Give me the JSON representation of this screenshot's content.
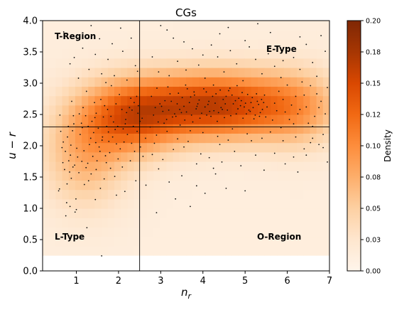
{
  "chart_data": {
    "type": "heatmap",
    "title": "CGs",
    "xlabel": "n_r",
    "ylabel": "u − r",
    "xlim": [
      0.2,
      7.0
    ],
    "ylim": [
      0.0,
      4.0
    ],
    "xticks": [
      1,
      2,
      3,
      4,
      5,
      6,
      7
    ],
    "yticks": [
      0.0,
      0.5,
      1.0,
      1.5,
      2.0,
      2.5,
      3.0,
      3.5,
      4.0
    ],
    "ytick_labels": [
      "0.0",
      "0.5",
      "1.0",
      "1.5",
      "2.0",
      "2.5",
      "3.0",
      "3.5",
      "4.0"
    ],
    "grid": false,
    "colormap": "Oranges",
    "colorbar": {
      "label": "Density",
      "range": [
        0.0,
        0.2
      ],
      "tick_labels": [
        "0.00",
        "0.03",
        "0.05",
        "0.08",
        "0.10",
        "0.12",
        "0.15",
        "0.18",
        "0.20"
      ]
    },
    "divider_lines": {
      "vertical_x": 2.5,
      "horizontal_y": 2.3
    },
    "region_labels": [
      "T-Region",
      "E-Type",
      "L-Type",
      "O-Region"
    ],
    "density_field": {
      "x_range": [
        0.2,
        7.0
      ],
      "y_range": [
        0.25,
        4.0
      ],
      "components": [
        {
          "cx": 4.3,
          "cy": 2.65,
          "sx": 1.3,
          "sy": 0.38,
          "weight": 0.15
        },
        {
          "cx": 2.3,
          "cy": 2.45,
          "sx": 0.8,
          "sy": 0.42,
          "weight": 0.1
        },
        {
          "cx": 1.2,
          "cy": 1.9,
          "sx": 0.7,
          "sy": 0.6,
          "weight": 0.06
        },
        {
          "cx": 6.3,
          "cy": 2.6,
          "sx": 0.7,
          "sy": 0.45,
          "weight": 0.05
        }
      ],
      "baseline": 0.012
    },
    "scatter_points": [
      [
        1.61,
        2.09
      ],
      [
        0.93,
        2.48
      ],
      [
        2.32,
        2.57
      ],
      [
        1.76,
        2.22
      ],
      [
        1.34,
        2.12
      ],
      [
        2.64,
        2.12
      ],
      [
        0.61,
        2.49
      ],
      [
        2.58,
        1.83
      ],
      [
        1.83,
        2.96
      ],
      [
        1.71,
        1.73
      ],
      [
        0.78,
        1.39
      ],
      [
        1.47,
        2.52
      ],
      [
        2.09,
        1.66
      ],
      [
        0.87,
        2.01
      ],
      [
        1.18,
        1.92
      ],
      [
        2.29,
        2.76
      ],
      [
        1.06,
        1.57
      ],
      [
        1.57,
        1.32
      ],
      [
        2.44,
        2.23
      ],
      [
        0.68,
        1.73
      ],
      [
        1.24,
        2.87
      ],
      [
        1.88,
        2.38
      ],
      [
        0.99,
        1.15
      ],
      [
        2.17,
        2.42
      ],
      [
        1.43,
        2.69
      ],
      [
        0.74,
        1.91
      ],
      [
        1.67,
        2.64
      ],
      [
        2.51,
        2.39
      ],
      [
        1.12,
        2.36
      ],
      [
        0.84,
        1.58
      ],
      [
        1.95,
        2.03
      ],
      [
        1.29,
        1.44
      ],
      [
        2.38,
        1.91
      ],
      [
        1.52,
        2.28
      ],
      [
        0.91,
        2.24
      ],
      [
        2.02,
        2.82
      ],
      [
        1.39,
        1.83
      ],
      [
        0.58,
        1.28
      ],
      [
        1.79,
        1.89
      ],
      [
        2.21,
        2.18
      ],
      [
        1.03,
        1.82
      ],
      [
        1.64,
        2.46
      ],
      [
        2.47,
        2.64
      ],
      [
        0.79,
        2.14
      ],
      [
        1.37,
        2.39
      ],
      [
        1.91,
        1.51
      ],
      [
        1.16,
        2.61
      ],
      [
        2.11,
        2.27
      ],
      [
        0.96,
        1.69
      ],
      [
        1.54,
        1.98
      ],
      [
        2.41,
        1.44
      ],
      [
        1.74,
        2.58
      ],
      [
        0.66,
        1.97
      ],
      [
        1.23,
        1.65
      ],
      [
        2.26,
        2.61
      ],
      [
        1.47,
        1.62
      ],
      [
        0.89,
        2.71
      ],
      [
        1.98,
        2.31
      ],
      [
        1.31,
        2.02
      ],
      [
        2.04,
        1.95
      ],
      [
        0.72,
        1.62
      ],
      [
        1.58,
        2.74
      ],
      [
        2.35,
        2.31
      ],
      [
        1.09,
        2.18
      ],
      [
        1.86,
        2.14
      ],
      [
        0.97,
        0.94
      ],
      [
        1.41,
        2.21
      ],
      [
        2.19,
        2.53
      ],
      [
        0.82,
        1.76
      ],
      [
        1.69,
        1.84
      ],
      [
        2.56,
        2.44
      ],
      [
        1.19,
        1.38
      ],
      [
        1.94,
        2.67
      ],
      [
        0.63,
        2.23
      ],
      [
        1.49,
        1.76
      ],
      [
        2.28,
        1.76
      ],
      [
        1.07,
        2.51
      ],
      [
        1.82,
        2.47
      ],
      [
        0.86,
        1.85
      ],
      [
        2.43,
        2.79
      ],
      [
        1.27,
        1.72
      ],
      [
        1.62,
        2.14
      ],
      [
        2.13,
        2.06
      ],
      [
        0.77,
        1.09
      ],
      [
        1.44,
        2.45
      ],
      [
        1.99,
        1.79
      ],
      [
        1.14,
        2.29
      ],
      [
        2.52,
        1.98
      ],
      [
        0.94,
        2.35
      ],
      [
        1.72,
        2.31
      ],
      [
        1.35,
        1.55
      ],
      [
        2.08,
        2.58
      ],
      [
        0.69,
        2.06
      ],
      [
        1.56,
        1.91
      ],
      [
        2.31,
        2.04
      ],
      [
        1.01,
        1.96
      ],
      [
        1.81,
        1.64
      ],
      [
        0.88,
        1.48
      ],
      [
        2.46,
        2.52
      ],
      [
        1.22,
        2.48
      ],
      [
        1.66,
        1.47
      ],
      [
        2.16,
        2.35
      ],
      [
        0.81,
        2.31
      ],
      [
        1.46,
        2.05
      ],
      [
        1.92,
        2.26
      ],
      [
        1.13,
        1.75
      ],
      [
        2.37,
        2.69
      ],
      [
        0.92,
        1.66
      ],
      [
        1.77,
        2.07
      ],
      [
        1.28,
        2.31
      ],
      [
        3.1,
        2.72
      ],
      [
        3.45,
        2.58
      ],
      [
        3.8,
        2.81
      ],
      [
        4.12,
        2.66
      ],
      [
        4.48,
        2.74
      ],
      [
        4.83,
        2.59
      ],
      [
        5.17,
        2.77
      ],
      [
        5.52,
        2.62
      ],
      [
        3.28,
        2.46
      ],
      [
        3.63,
        2.91
      ],
      [
        3.97,
        2.52
      ],
      [
        4.31,
        2.83
      ],
      [
        4.66,
        2.48
      ],
      [
        5.01,
        2.68
      ],
      [
        5.36,
        2.53
      ],
      [
        2.87,
        2.61
      ],
      [
        3.22,
        2.83
      ],
      [
        3.57,
        2.41
      ],
      [
        3.91,
        2.73
      ],
      [
        4.26,
        2.56
      ],
      [
        4.61,
        2.88
      ],
      [
        4.95,
        2.44
      ],
      [
        5.29,
        2.71
      ],
      [
        2.94,
        2.38
      ],
      [
        3.39,
        2.67
      ],
      [
        3.73,
        2.49
      ],
      [
        4.08,
        2.86
      ],
      [
        4.43,
        2.61
      ],
      [
        4.77,
        2.72
      ],
      [
        5.12,
        2.55
      ],
      [
        5.46,
        2.81
      ],
      [
        3.05,
        2.55
      ],
      [
        3.51,
        2.77
      ],
      [
        3.86,
        2.63
      ],
      [
        4.19,
        2.47
      ],
      [
        4.55,
        2.79
      ],
      [
        4.89,
        2.64
      ],
      [
        5.24,
        2.49
      ],
      [
        2.78,
        2.79
      ],
      [
        3.14,
        2.42
      ],
      [
        3.68,
        2.69
      ],
      [
        4.02,
        2.91
      ],
      [
        4.37,
        2.53
      ],
      [
        4.72,
        2.67
      ],
      [
        5.06,
        2.82
      ],
      [
        5.41,
        2.58
      ],
      [
        3.33,
        2.51
      ],
      [
        3.79,
        2.86
      ],
      [
        4.14,
        2.71
      ],
      [
        4.51,
        2.45
      ],
      [
        4.85,
        2.76
      ],
      [
        5.19,
        2.61
      ],
      [
        2.98,
        2.67
      ],
      [
        3.46,
        2.33
      ],
      [
        3.84,
        2.59
      ],
      [
        4.23,
        2.79
      ],
      [
        4.58,
        2.57
      ],
      [
        4.93,
        2.85
      ],
      [
        5.32,
        2.66
      ],
      [
        3.17,
        2.94
      ],
      [
        3.55,
        2.63
      ],
      [
        3.93,
        2.44
      ],
      [
        4.29,
        2.68
      ],
      [
        4.64,
        2.92
      ],
      [
        5.03,
        2.51
      ],
      [
        5.39,
        2.74
      ],
      [
        2.83,
        2.49
      ],
      [
        3.25,
        2.71
      ],
      [
        3.61,
        2.54
      ],
      [
        4.05,
        2.62
      ],
      [
        4.41,
        2.89
      ],
      [
        4.79,
        2.51
      ],
      [
        5.14,
        2.69
      ],
      [
        5.49,
        2.46
      ],
      [
        3.08,
        2.36
      ],
      [
        3.42,
        2.84
      ],
      [
        3.76,
        2.38
      ],
      [
        4.16,
        2.55
      ],
      [
        4.53,
        2.67
      ],
      [
        4.91,
        2.72
      ],
      [
        5.27,
        2.83
      ],
      [
        2.91,
        2.92
      ],
      [
        3.36,
        2.47
      ],
      [
        3.71,
        2.78
      ],
      [
        4.09,
        2.49
      ],
      [
        4.46,
        2.58
      ],
      [
        4.81,
        2.96
      ],
      [
        5.21,
        2.43
      ],
      [
        3.02,
        2.63
      ],
      [
        3.59,
        2.97
      ],
      [
        4.34,
        2.39
      ],
      [
        4.69,
        2.81
      ],
      [
        5.09,
        2.57
      ],
      [
        5.44,
        2.69
      ],
      [
        3.19,
        2.57
      ],
      [
        3.88,
        2.67
      ],
      [
        4.25,
        2.97
      ],
      [
        4.98,
        2.62
      ],
      [
        5.34,
        2.47
      ],
      [
        3.49,
        2.53
      ],
      [
        2.75,
        2.3
      ],
      [
        2.9,
        2.17
      ],
      [
        3.15,
        2.23
      ],
      [
        3.4,
        2.11
      ],
      [
        3.7,
        2.24
      ],
      [
        4.0,
        2.21
      ],
      [
        4.35,
        2.15
      ],
      [
        4.7,
        2.27
      ],
      [
        5.05,
        2.19
      ],
      [
        5.4,
        2.12
      ],
      [
        2.85,
        2.04
      ],
      [
        3.3,
        1.94
      ],
      [
        3.65,
        2.07
      ],
      [
        3.95,
        1.87
      ],
      [
        4.4,
        2.02
      ],
      [
        4.75,
        1.91
      ],
      [
        5.15,
        2.08
      ],
      [
        3.05,
        1.78
      ],
      [
        3.55,
        1.98
      ],
      [
        4.15,
        1.81
      ],
      [
        4.6,
        2.09
      ],
      [
        5.25,
        1.85
      ],
      [
        3.85,
        1.71
      ],
      [
        4.45,
        1.74
      ],
      [
        2.95,
        1.63
      ],
      [
        3.5,
        1.52
      ],
      [
        4.9,
        1.68
      ],
      [
        3.2,
        1.42
      ],
      [
        4.25,
        1.64
      ],
      [
        2.8,
        1.86
      ],
      [
        5.7,
        2.68
      ],
      [
        5.95,
        2.54
      ],
      [
        6.2,
        2.79
      ],
      [
        6.45,
        2.62
      ],
      [
        6.7,
        2.83
      ],
      [
        6.9,
        2.51
      ],
      [
        5.8,
        2.87
      ],
      [
        6.05,
        2.42
      ],
      [
        6.3,
        2.58
      ],
      [
        6.55,
        2.96
      ],
      [
        6.8,
        2.71
      ],
      [
        5.65,
        2.41
      ],
      [
        5.9,
        2.74
      ],
      [
        6.15,
        2.35
      ],
      [
        6.4,
        2.81
      ],
      [
        6.65,
        2.47
      ],
      [
        6.95,
        2.93
      ],
      [
        5.75,
        2.56
      ],
      [
        6.0,
        2.97
      ],
      [
        6.25,
        2.51
      ],
      [
        6.5,
        2.36
      ],
      [
        6.75,
        2.61
      ],
      [
        5.85,
        2.29
      ],
      [
        6.1,
        2.65
      ],
      [
        6.35,
        3.02
      ],
      [
        6.6,
        2.31
      ],
      [
        6.85,
        2.18
      ],
      [
        5.6,
        2.22
      ],
      [
        6.2,
        2.14
      ],
      [
        6.55,
        2.05
      ],
      [
        5.9,
        2.08
      ],
      [
        6.4,
        1.95
      ],
      [
        6.75,
        2.02
      ],
      [
        5.7,
        1.88
      ],
      [
        6.15,
        1.82
      ],
      [
        6.6,
        2.12
      ],
      [
        6.85,
        1.97
      ],
      [
        5.95,
        1.71
      ],
      [
        6.45,
        1.85
      ],
      [
        6.95,
        1.74
      ],
      [
        3.2,
        3.12
      ],
      [
        3.6,
        3.21
      ],
      [
        4.05,
        3.08
      ],
      [
        4.5,
        3.18
      ],
      [
        4.95,
        3.04
      ],
      [
        5.4,
        3.15
      ],
      [
        5.85,
        3.09
      ],
      [
        6.3,
        3.22
      ],
      [
        6.7,
        3.11
      ],
      [
        3.4,
        3.35
      ],
      [
        3.9,
        3.29
      ],
      [
        4.35,
        3.42
      ],
      [
        4.8,
        3.31
      ],
      [
        5.25,
        3.38
      ],
      [
        5.7,
        3.27
      ],
      [
        6.15,
        3.41
      ],
      [
        6.6,
        3.33
      ],
      [
        2.95,
        3.18
      ],
      [
        3.75,
        3.55
      ],
      [
        4.2,
        3.61
      ],
      [
        4.65,
        3.52
      ],
      [
        5.1,
        3.58
      ],
      [
        5.55,
        3.47
      ],
      [
        6.0,
        3.56
      ],
      [
        6.45,
        3.62
      ],
      [
        6.9,
        3.51
      ],
      [
        3.3,
        3.72
      ],
      [
        4.4,
        3.79
      ],
      [
        5.0,
        3.68
      ],
      [
        5.6,
        3.81
      ],
      [
        6.3,
        3.74
      ],
      [
        3.0,
        3.92
      ],
      [
        4.6,
        3.89
      ],
      [
        5.3,
        3.95
      ],
      [
        6.8,
        3.76
      ],
      [
        3.55,
        3.66
      ],
      [
        4.0,
        3.45
      ],
      [
        5.9,
        3.36
      ],
      [
        2.8,
        3.42
      ],
      [
        3.15,
        3.85
      ],
      [
        2.2,
        3.05
      ],
      [
        1.9,
        3.12
      ],
      [
        1.6,
        3.15
      ],
      [
        1.3,
        3.22
      ],
      [
        1.05,
        3.08
      ],
      [
        0.85,
        3.31
      ],
      [
        2.4,
        3.28
      ],
      [
        1.75,
        3.38
      ],
      [
        1.45,
        3.46
      ],
      [
        2.1,
        3.51
      ],
      [
        1.15,
        3.56
      ],
      [
        0.7,
        3.82
      ],
      [
        1.85,
        3.63
      ],
      [
        2.3,
        3.72
      ],
      [
        1.55,
        3.71
      ],
      [
        0.95,
        3.41
      ],
      [
        2.05,
        3.88
      ],
      [
        1.35,
        3.92
      ],
      [
        2.45,
        3.19
      ],
      [
        1.7,
        3.01
      ],
      [
        1.0,
        0.98
      ],
      [
        0.75,
        0.88
      ],
      [
        1.25,
        0.69
      ],
      [
        1.6,
        0.24
      ],
      [
        0.85,
        1.03
      ],
      [
        1.45,
        1.14
      ],
      [
        2.15,
        1.27
      ],
      [
        2.9,
        0.93
      ],
      [
        3.35,
        1.15
      ],
      [
        3.7,
        1.03
      ],
      [
        4.05,
        1.24
      ],
      [
        4.55,
        1.32
      ],
      [
        5.0,
        1.28
      ],
      [
        2.65,
        1.37
      ],
      [
        1.95,
        1.21
      ],
      [
        0.6,
        1.31
      ],
      [
        3.85,
        1.36
      ],
      [
        4.3,
        1.55
      ],
      [
        5.45,
        1.61
      ],
      [
        6.25,
        1.58
      ]
    ]
  }
}
